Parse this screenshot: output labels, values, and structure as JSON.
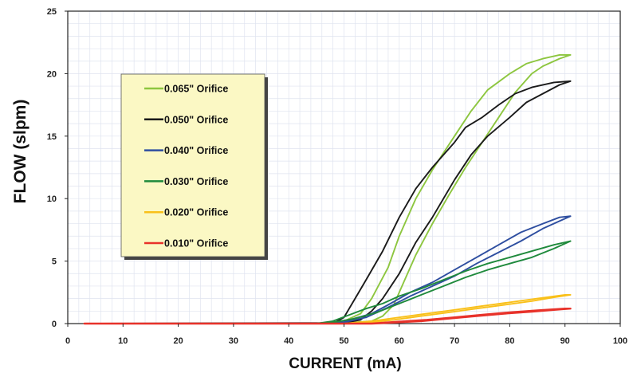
{
  "chart_data": {
    "type": "line",
    "title": "",
    "xlabel": "CURRENT (mA)",
    "ylabel": "FLOW (slpm)",
    "xlim": [
      0,
      100
    ],
    "ylim": [
      0,
      25
    ],
    "xticks": [
      0,
      10,
      20,
      30,
      40,
      50,
      60,
      70,
      80,
      90,
      100
    ],
    "yticks": [
      0,
      5,
      10,
      15,
      20,
      25
    ],
    "grid": true,
    "legend_position": "left",
    "series": [
      {
        "name": "0.065\" Orifice",
        "color": "#8dc63f",
        "points": [
          [
            3,
            0
          ],
          [
            45,
            0
          ],
          [
            50,
            0.2
          ],
          [
            53,
            0.8
          ],
          [
            55,
            2
          ],
          [
            58,
            4.5
          ],
          [
            60,
            7
          ],
          [
            63,
            10
          ],
          [
            66,
            12.3
          ],
          [
            70,
            15
          ],
          [
            73,
            17
          ],
          [
            76,
            18.7
          ],
          [
            80,
            20
          ],
          [
            83,
            20.8
          ],
          [
            86,
            21.2
          ],
          [
            89,
            21.5
          ],
          [
            91,
            21.5
          ],
          [
            89,
            21.2
          ],
          [
            86,
            20.6
          ],
          [
            84,
            20
          ],
          [
            81,
            18.5
          ],
          [
            78,
            16.5
          ],
          [
            75,
            14.5
          ],
          [
            72,
            12.5
          ],
          [
            69,
            10.3
          ],
          [
            66,
            8
          ],
          [
            63,
            5.5
          ],
          [
            61,
            3.5
          ],
          [
            59,
            1.5
          ],
          [
            57,
            0.6
          ],
          [
            55,
            0.2
          ],
          [
            50,
            0.05
          ],
          [
            44,
            0
          ],
          [
            3,
            0
          ]
        ]
      },
      {
        "name": "0.050\" Orifice",
        "color": "#1a1a1a",
        "points": [
          [
            3,
            0
          ],
          [
            48,
            0
          ],
          [
            50,
            0.5
          ],
          [
            52,
            2
          ],
          [
            54,
            3.5
          ],
          [
            57,
            5.8
          ],
          [
            60,
            8.5
          ],
          [
            63,
            10.8
          ],
          [
            66,
            12.5
          ],
          [
            70,
            14.5
          ],
          [
            72,
            15.7
          ],
          [
            75,
            16.5
          ],
          [
            78,
            17.5
          ],
          [
            81,
            18.4
          ],
          [
            84,
            18.9
          ],
          [
            88,
            19.3
          ],
          [
            91,
            19.4
          ],
          [
            89,
            19.1
          ],
          [
            86,
            18.4
          ],
          [
            83,
            17.7
          ],
          [
            80,
            16.5
          ],
          [
            76,
            15
          ],
          [
            73,
            13.5
          ],
          [
            70,
            11.5
          ],
          [
            66,
            8.5
          ],
          [
            63,
            6.5
          ],
          [
            60,
            4
          ],
          [
            57,
            2
          ],
          [
            55,
            1
          ],
          [
            53,
            0.3
          ],
          [
            50,
            0.05
          ],
          [
            3,
            0
          ]
        ]
      },
      {
        "name": "0.040\" Orifice",
        "color": "#2e4ea0",
        "points": [
          [
            3,
            0
          ],
          [
            45,
            0
          ],
          [
            48,
            0.1
          ],
          [
            51,
            0.3
          ],
          [
            55,
            0.8
          ],
          [
            58,
            1.5
          ],
          [
            62,
            2.5
          ],
          [
            66,
            3.3
          ],
          [
            70,
            4.3
          ],
          [
            74,
            5.3
          ],
          [
            78,
            6.3
          ],
          [
            82,
            7.3
          ],
          [
            86,
            8
          ],
          [
            89,
            8.5
          ],
          [
            91,
            8.6
          ],
          [
            89,
            8.2
          ],
          [
            86,
            7.6
          ],
          [
            82,
            6.6
          ],
          [
            78,
            5.7
          ],
          [
            74,
            4.8
          ],
          [
            70,
            3.8
          ],
          [
            66,
            3
          ],
          [
            62,
            2.2
          ],
          [
            58,
            1.3
          ],
          [
            54,
            0.5
          ],
          [
            50,
            0.1
          ],
          [
            45,
            0
          ],
          [
            3,
            0
          ]
        ]
      },
      {
        "name": "0.030\" Orifice",
        "color": "#1f8a3c",
        "points": [
          [
            3,
            0
          ],
          [
            45,
            0
          ],
          [
            48,
            0.2
          ],
          [
            51,
            0.7
          ],
          [
            54,
            1.2
          ],
          [
            57,
            1.6
          ],
          [
            60,
            2.2
          ],
          [
            64,
            2.8
          ],
          [
            68,
            3.5
          ],
          [
            72,
            4.2
          ],
          [
            76,
            4.8
          ],
          [
            80,
            5.3
          ],
          [
            84,
            5.8
          ],
          [
            88,
            6.3
          ],
          [
            91,
            6.6
          ],
          [
            88,
            6
          ],
          [
            84,
            5.3
          ],
          [
            80,
            4.8
          ],
          [
            76,
            4.3
          ],
          [
            72,
            3.7
          ],
          [
            68,
            3
          ],
          [
            64,
            2.3
          ],
          [
            60,
            1.6
          ],
          [
            56,
            0.9
          ],
          [
            52,
            0.4
          ],
          [
            48,
            0.1
          ],
          [
            45,
            0
          ],
          [
            3,
            0
          ]
        ]
      },
      {
        "name": "0.020\" Orifice",
        "color": "#f9c01a",
        "points": [
          [
            3,
            0
          ],
          [
            50,
            0
          ],
          [
            55,
            0.2
          ],
          [
            60,
            0.5
          ],
          [
            65,
            0.8
          ],
          [
            70,
            1.1
          ],
          [
            75,
            1.4
          ],
          [
            80,
            1.7
          ],
          [
            85,
            2
          ],
          [
            90,
            2.3
          ],
          [
            91,
            2.3
          ],
          [
            88,
            2.1
          ],
          [
            84,
            1.8
          ],
          [
            79,
            1.5
          ],
          [
            74,
            1.2
          ],
          [
            69,
            0.9
          ],
          [
            64,
            0.6
          ],
          [
            59,
            0.3
          ],
          [
            55,
            0.1
          ],
          [
            50,
            0
          ],
          [
            3,
            0
          ]
        ]
      },
      {
        "name": "0.010\" Orifice",
        "color": "#e8322a",
        "points": [
          [
            3,
            0
          ],
          [
            55,
            0
          ],
          [
            60,
            0.15
          ],
          [
            65,
            0.3
          ],
          [
            70,
            0.5
          ],
          [
            75,
            0.7
          ],
          [
            80,
            0.9
          ],
          [
            85,
            1.05
          ],
          [
            90,
            1.2
          ],
          [
            91,
            1.2
          ],
          [
            88,
            1.1
          ],
          [
            84,
            0.95
          ],
          [
            79,
            0.8
          ],
          [
            74,
            0.6
          ],
          [
            69,
            0.4
          ],
          [
            64,
            0.2
          ],
          [
            59,
            0.08
          ],
          [
            55,
            0
          ],
          [
            3,
            0
          ]
        ]
      }
    ]
  }
}
